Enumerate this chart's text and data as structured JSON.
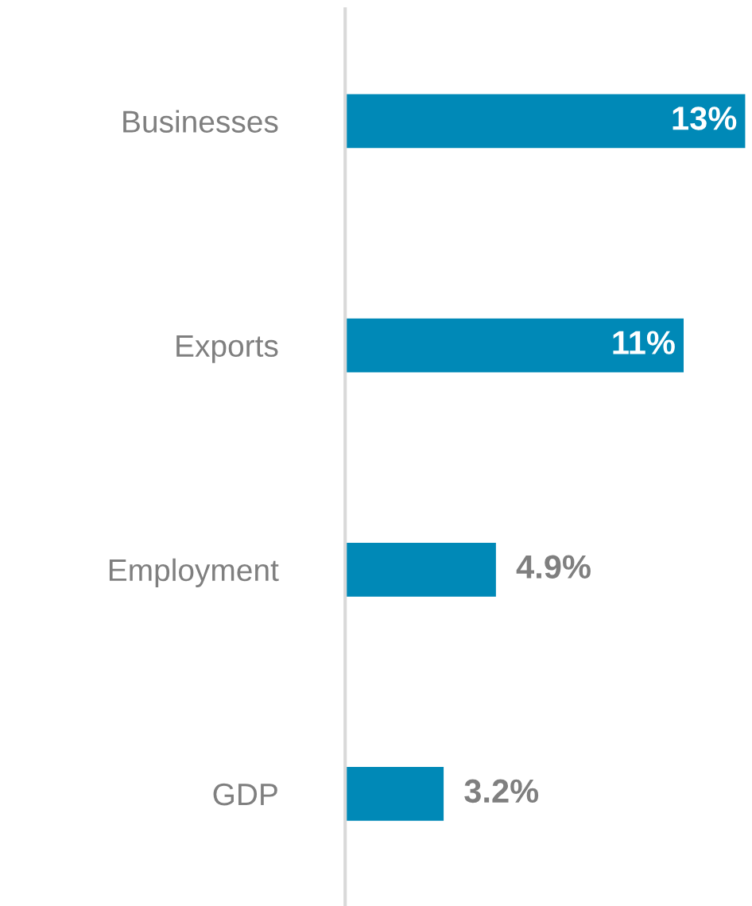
{
  "chart_data": {
    "type": "bar",
    "orientation": "horizontal",
    "categories": [
      "Businesses",
      "Exports",
      "Employment",
      "GDP"
    ],
    "values": [
      13,
      11,
      4.9,
      3.2
    ],
    "value_labels": [
      "13%",
      "11%",
      "4.9%",
      "3.2%"
    ],
    "color": "#0089b7",
    "grid": false,
    "legend": false
  }
}
